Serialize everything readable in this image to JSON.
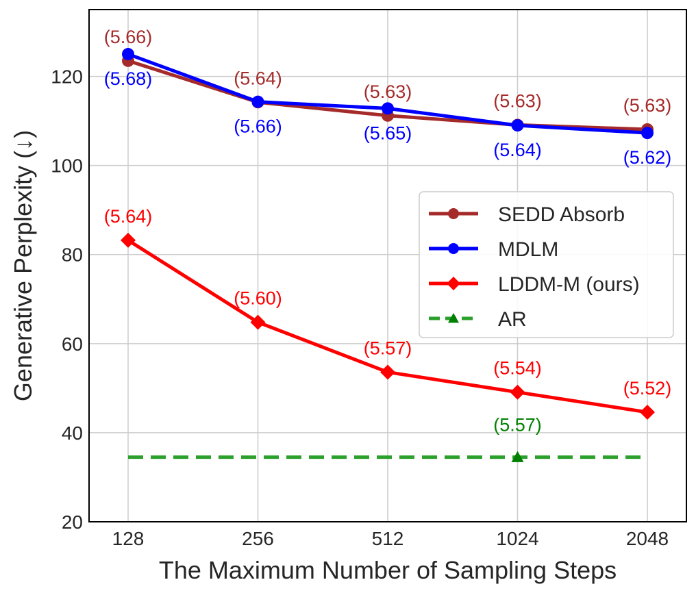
{
  "chart_data": {
    "type": "line",
    "title": "",
    "xlabel": "The Maximum Number of Sampling Steps",
    "ylabel": "Generative Perplexity (↓)",
    "categories": [
      "128",
      "256",
      "512",
      "1024",
      "2048"
    ],
    "ylim": [
      20,
      135
    ],
    "yticks": [
      20,
      40,
      60,
      80,
      100,
      120
    ],
    "grid": true,
    "legend_position": "center-right",
    "series": [
      {
        "name": "SEDD Absorb",
        "color": "#a52a2a",
        "marker": "circle",
        "linestyle": "solid",
        "values": [
          123.5,
          114.2,
          111.2,
          109.1,
          108.1
        ],
        "labels": [
          "(5.66)",
          "(5.64)",
          "(5.63)",
          "(5.63)",
          "(5.63)"
        ],
        "label_side": "above"
      },
      {
        "name": "MDLM",
        "color": "#0000ff",
        "marker": "circle",
        "linestyle": "solid",
        "values": [
          125.0,
          114.3,
          112.8,
          109.0,
          107.3
        ],
        "labels": [
          "(5.68)",
          "(5.66)",
          "(5.65)",
          "(5.64)",
          "(5.62)"
        ],
        "label_side": "below"
      },
      {
        "name": "LDDM-M (ours)",
        "color": "#ff0000",
        "marker": "diamond",
        "linestyle": "solid",
        "values": [
          83.2,
          64.8,
          53.6,
          49.1,
          44.6
        ],
        "labels": [
          "(5.64)",
          "(5.60)",
          "(5.57)",
          "(5.54)",
          "(5.52)"
        ],
        "label_side": "above"
      },
      {
        "name": "AR",
        "color": "#008000",
        "line_color": "#2ca02c",
        "marker": "triangle",
        "linestyle": "dashed",
        "line_from_index": 0,
        "line_to_index": 4,
        "marker_index": 3,
        "value": 34.5,
        "label": "(5.57)",
        "label_side": "above"
      }
    ]
  }
}
